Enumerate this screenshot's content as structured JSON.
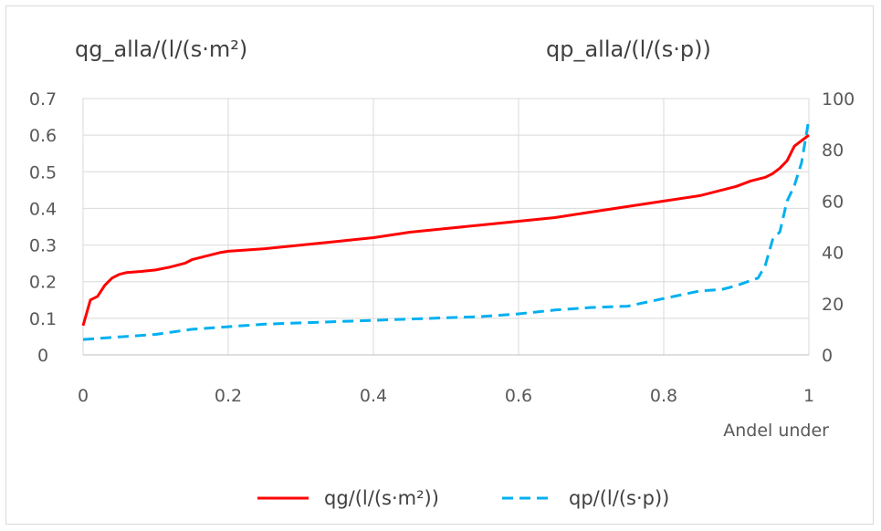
{
  "chart_data": {
    "type": "line",
    "left_axis_title": "qg_alla/(l/(s·m²)",
    "right_axis_title": "qp_alla/(l/(s·p))",
    "xlabel": "Andel under",
    "xlim": [
      0,
      1
    ],
    "ylim_left": [
      0,
      0.7
    ],
    "ylim_right": [
      0,
      100
    ],
    "x_ticks": [
      "0",
      "0.2",
      "0.4",
      "0.6",
      "0.8",
      "1"
    ],
    "y_left_ticks": [
      "0",
      "0.1",
      "0.2",
      "0.3",
      "0.4",
      "0.5",
      "0.6",
      "0.7"
    ],
    "y_right_ticks": [
      "0",
      "20",
      "40",
      "60",
      "80",
      "100"
    ],
    "grid": true,
    "legend_position": "bottom",
    "series": [
      {
        "name": "qg/(l/(s·m²))",
        "axis": "left",
        "color": "#ff0000",
        "style": "solid",
        "x": [
          0,
          0.01,
          0.02,
          0.03,
          0.04,
          0.05,
          0.06,
          0.08,
          0.1,
          0.12,
          0.14,
          0.15,
          0.17,
          0.19,
          0.2,
          0.25,
          0.3,
          0.35,
          0.4,
          0.45,
          0.5,
          0.55,
          0.6,
          0.65,
          0.7,
          0.75,
          0.8,
          0.85,
          0.9,
          0.92,
          0.94,
          0.95,
          0.96,
          0.97,
          0.98,
          1.0
        ],
        "y": [
          0.08,
          0.15,
          0.16,
          0.19,
          0.21,
          0.22,
          0.225,
          0.228,
          0.232,
          0.24,
          0.25,
          0.26,
          0.27,
          0.28,
          0.283,
          0.29,
          0.3,
          0.31,
          0.32,
          0.335,
          0.345,
          0.355,
          0.365,
          0.375,
          0.39,
          0.405,
          0.42,
          0.435,
          0.46,
          0.475,
          0.485,
          0.495,
          0.51,
          0.53,
          0.57,
          0.6
        ]
      },
      {
        "name": "qp/(l/(s·p))",
        "axis": "right",
        "color": "#00b0f0",
        "style": "dashed",
        "x": [
          0,
          0.05,
          0.1,
          0.15,
          0.2,
          0.25,
          0.3,
          0.35,
          0.4,
          0.45,
          0.5,
          0.55,
          0.6,
          0.65,
          0.7,
          0.75,
          0.8,
          0.85,
          0.88,
          0.9,
          0.93,
          0.94,
          0.95,
          0.96,
          0.97,
          0.98,
          0.99,
          1.0
        ],
        "y": [
          6,
          7,
          8,
          10,
          11,
          12,
          12.5,
          13,
          13.5,
          14,
          14.5,
          15,
          16,
          17.5,
          18.5,
          19,
          22,
          25,
          25.5,
          27,
          30,
          35,
          45,
          48,
          60,
          66,
          75,
          92
        ]
      }
    ]
  }
}
